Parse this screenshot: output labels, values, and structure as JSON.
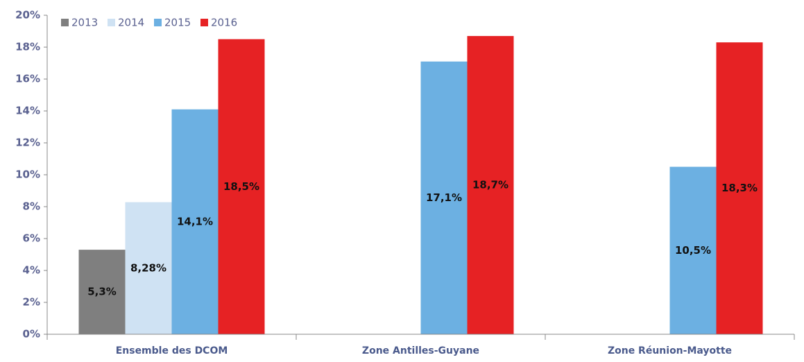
{
  "chart_data": {
    "type": "bar",
    "categories": [
      "Ensemble des DCOM",
      "Zone Antilles-Guyane",
      "Zone Réunion-Mayotte"
    ],
    "series": [
      {
        "name": "2013",
        "color": "#7f7f7f",
        "values": [
          5.3,
          null,
          null
        ],
        "value_labels": [
          "5,3%",
          null,
          null
        ]
      },
      {
        "name": "2014",
        "color": "#cfe2f3",
        "values": [
          8.28,
          null,
          null
        ],
        "value_labels": [
          "8,28%",
          null,
          null
        ]
      },
      {
        "name": "2015",
        "color": "#6cb0e2",
        "values": [
          14.1,
          17.1,
          10.5
        ],
        "value_labels": [
          "14,1%",
          "17,1%",
          "10,5%"
        ]
      },
      {
        "name": "2016",
        "color": "#e62224",
        "values": [
          18.5,
          18.7,
          18.3
        ],
        "value_labels": [
          "18,5%",
          "18,7%",
          "18,3%"
        ]
      }
    ],
    "ylim": [
      0,
      20
    ],
    "yticks": [
      {
        "value": 0,
        "label": "0%"
      },
      {
        "value": 2,
        "label": "2%"
      },
      {
        "value": 4,
        "label": "4%"
      },
      {
        "value": 6,
        "label": "6%"
      },
      {
        "value": 8,
        "label": "8%"
      },
      {
        "value": 10,
        "label": "10%"
      },
      {
        "value": 12,
        "label": "12%"
      },
      {
        "value": 14,
        "label": "14%"
      },
      {
        "value": 16,
        "label": "16%"
      },
      {
        "value": 18,
        "label": "18%"
      },
      {
        "value": 20,
        "label": "20%"
      }
    ],
    "legend": "top-left"
  }
}
